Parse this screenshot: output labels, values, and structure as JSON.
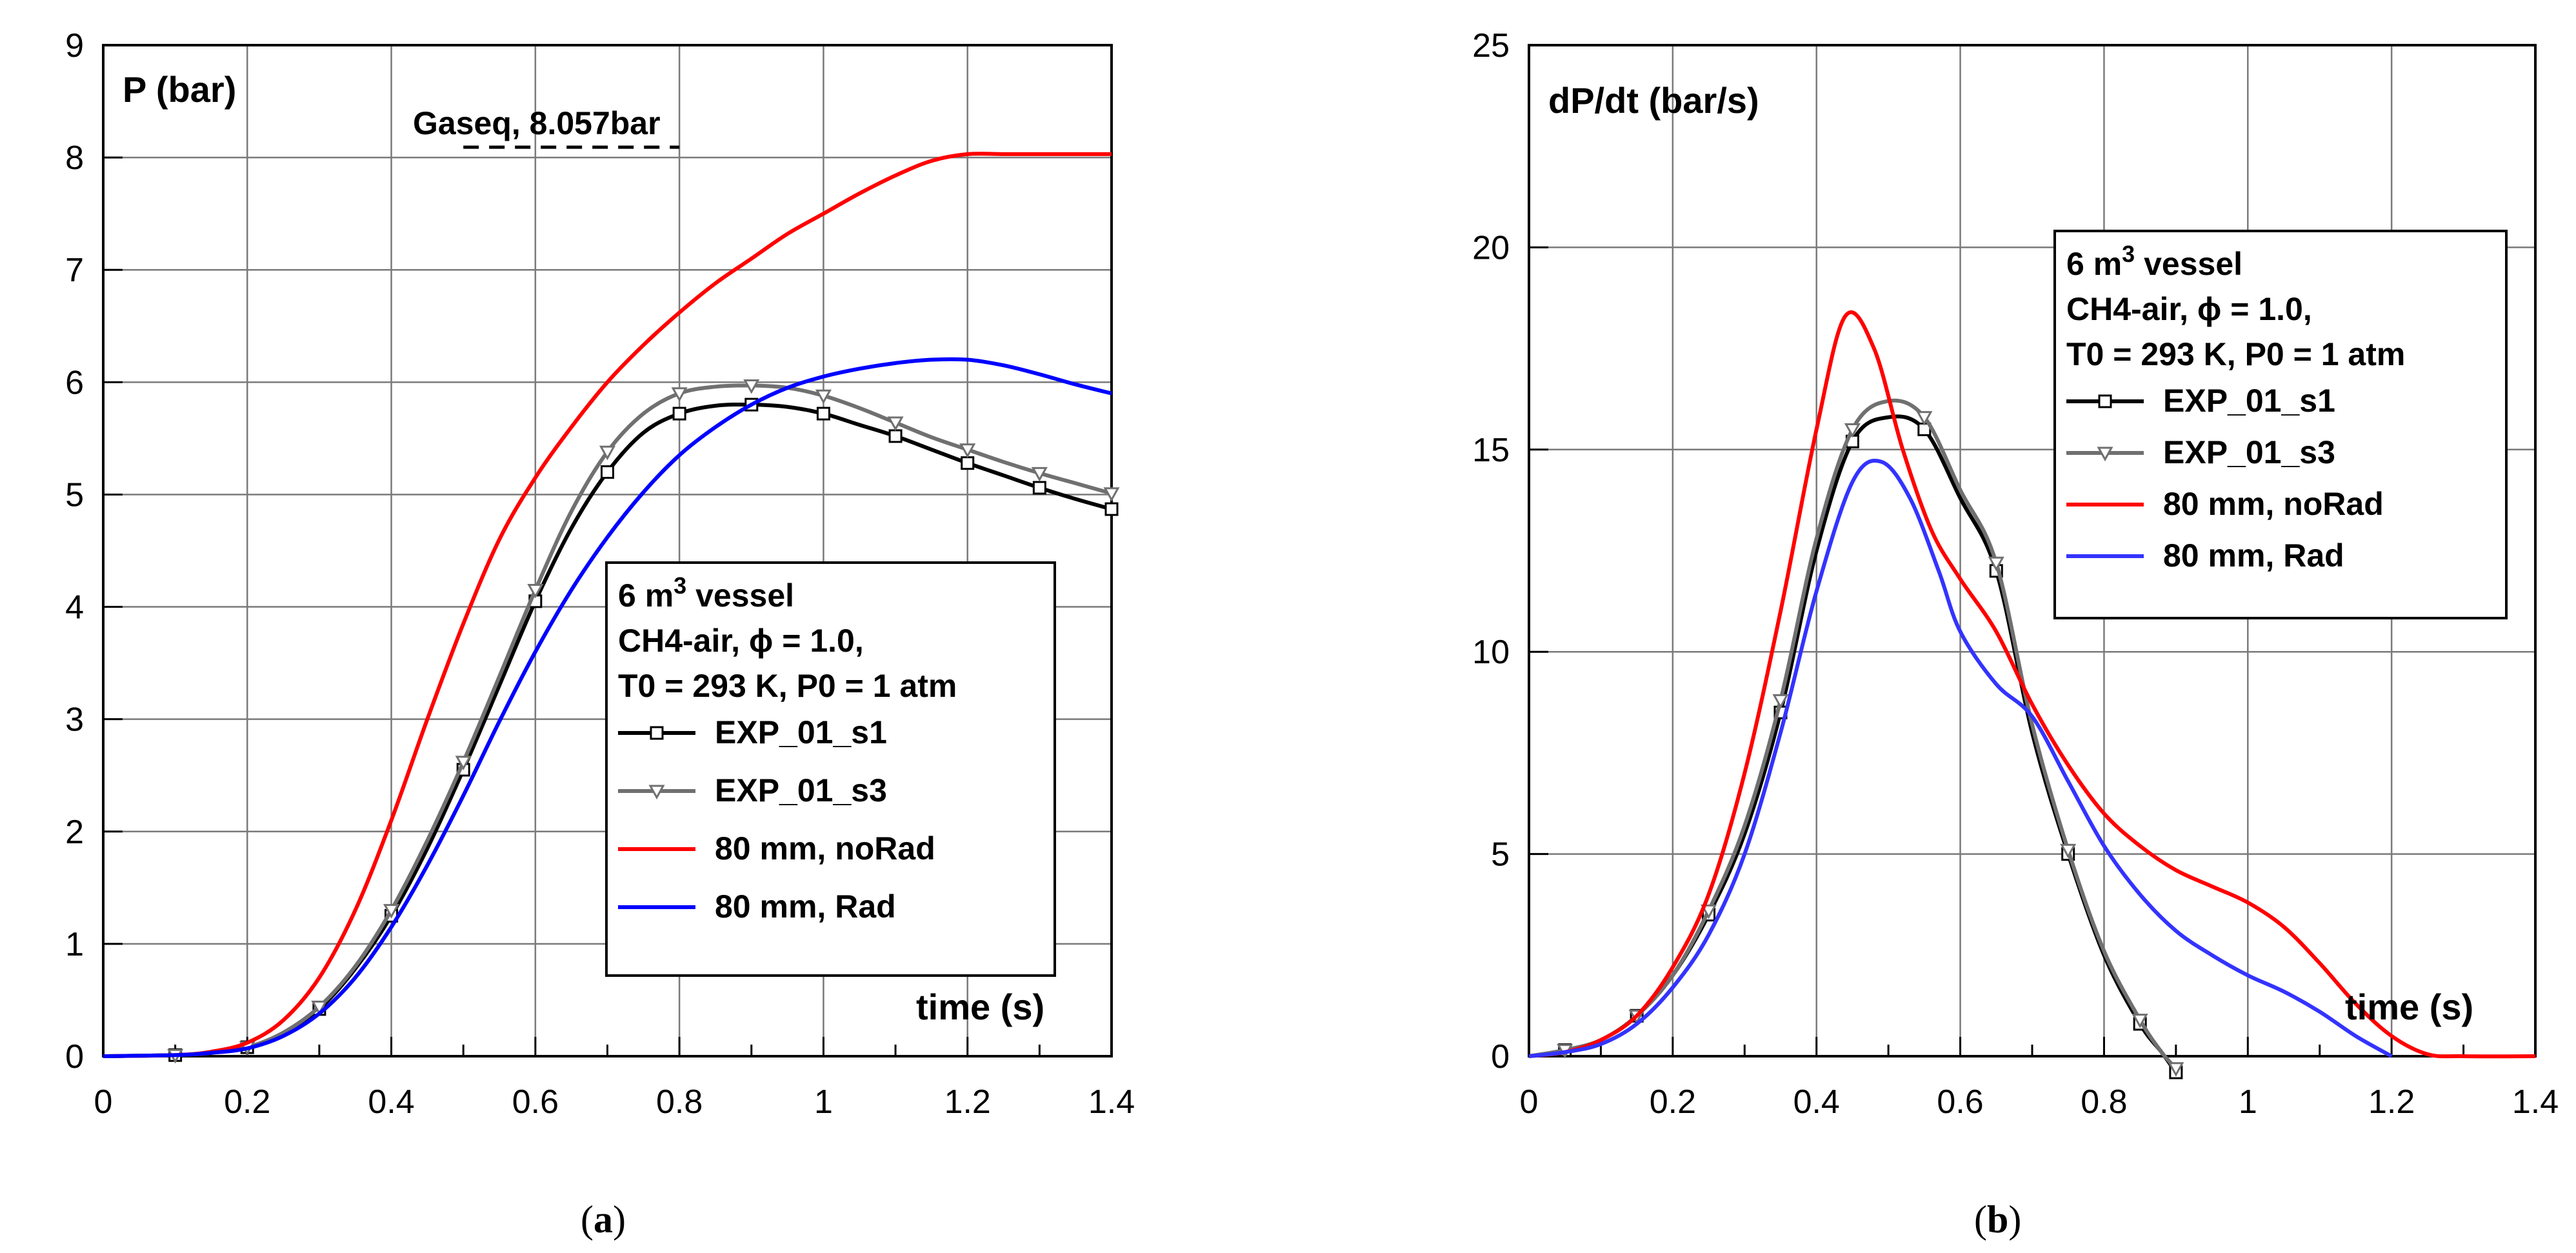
{
  "chart_data": [
    {
      "type": "line",
      "panel": "a",
      "caption_letter": "a",
      "ylabel": "P (bar)",
      "xlabel": "time (s)",
      "xlim": [
        0,
        1.4
      ],
      "ylim": [
        0,
        9
      ],
      "x_ticks": [
        "0",
        "0.2",
        "0.4",
        "0.6",
        "0.8",
        "1",
        "1.2",
        "1.4"
      ],
      "y_ticks": [
        "0",
        "1",
        "2",
        "3",
        "4",
        "5",
        "6",
        "7",
        "8",
        "9"
      ],
      "annotation": {
        "text": "Gaseq, 8.057bar",
        "value": 8.057,
        "x_range": [
          0.5,
          0.8
        ]
      },
      "legend": {
        "placement": "center-right",
        "title_prefix": "6 m",
        "title_sup": "3",
        "title_suffix": " vessel",
        "fuel_text": "CH4-air, ϕ = 1.0,",
        "cond_t": "T0 = 293 K,",
        "cond_p": "P0 = 1 atm"
      },
      "series": [
        {
          "name": "EXP_01_s1",
          "color": "#000000",
          "marker": "square",
          "x": [
            0,
            0.1,
            0.15,
            0.2,
            0.25,
            0.3,
            0.35,
            0.4,
            0.45,
            0.5,
            0.55,
            0.6,
            0.65,
            0.7,
            0.75,
            0.8,
            0.85,
            0.9,
            0.95,
            1.0,
            1.05,
            1.1,
            1.15,
            1.2,
            1.25,
            1.3,
            1.35,
            1.4
          ],
          "y": [
            0,
            0.01,
            0.03,
            0.08,
            0.2,
            0.42,
            0.78,
            1.25,
            1.85,
            2.55,
            3.3,
            4.05,
            4.7,
            5.2,
            5.55,
            5.72,
            5.79,
            5.8,
            5.78,
            5.72,
            5.62,
            5.52,
            5.4,
            5.28,
            5.17,
            5.06,
            4.96,
            4.87
          ]
        },
        {
          "name": "EXP_01_s3",
          "color": "#707070",
          "marker": "triangle",
          "x": [
            0,
            0.1,
            0.15,
            0.2,
            0.25,
            0.3,
            0.35,
            0.4,
            0.45,
            0.5,
            0.55,
            0.6,
            0.65,
            0.7,
            0.75,
            0.8,
            0.85,
            0.9,
            0.95,
            1.0,
            1.05,
            1.1,
            1.15,
            1.2,
            1.25,
            1.3,
            1.35,
            1.4
          ],
          "y": [
            0,
            0.01,
            0.03,
            0.08,
            0.21,
            0.44,
            0.8,
            1.3,
            1.92,
            2.62,
            3.38,
            4.15,
            4.85,
            5.38,
            5.72,
            5.9,
            5.96,
            5.97,
            5.95,
            5.88,
            5.77,
            5.64,
            5.51,
            5.4,
            5.29,
            5.19,
            5.1,
            5.01
          ]
        },
        {
          "name": "80 mm, noRad",
          "color": "#ff0000",
          "marker": "none",
          "x": [
            0,
            0.1,
            0.15,
            0.2,
            0.25,
            0.3,
            0.35,
            0.4,
            0.45,
            0.5,
            0.55,
            0.6,
            0.65,
            0.7,
            0.75,
            0.8,
            0.85,
            0.9,
            0.95,
            1.0,
            1.05,
            1.1,
            1.15,
            1.2,
            1.25,
            1.3,
            1.35,
            1.4
          ],
          "y": [
            0,
            0.01,
            0.04,
            0.12,
            0.32,
            0.7,
            1.3,
            2.1,
            3.0,
            3.85,
            4.6,
            5.15,
            5.6,
            6.0,
            6.33,
            6.62,
            6.88,
            7.1,
            7.32,
            7.5,
            7.68,
            7.84,
            7.97,
            8.03,
            8.03,
            8.03,
            8.03,
            8.03
          ]
        },
        {
          "name": "80 mm, Rad",
          "color": "#0000ff",
          "marker": "none",
          "x": [
            0,
            0.1,
            0.15,
            0.2,
            0.25,
            0.3,
            0.35,
            0.4,
            0.45,
            0.5,
            0.55,
            0.6,
            0.65,
            0.7,
            0.75,
            0.8,
            0.85,
            0.9,
            0.95,
            1.0,
            1.05,
            1.1,
            1.15,
            1.2,
            1.25,
            1.3,
            1.35,
            1.4
          ],
          "y": [
            0,
            0.01,
            0.03,
            0.07,
            0.18,
            0.38,
            0.7,
            1.15,
            1.7,
            2.32,
            2.98,
            3.6,
            4.15,
            4.62,
            5.02,
            5.35,
            5.6,
            5.8,
            5.95,
            6.05,
            6.12,
            6.17,
            6.2,
            6.2,
            6.15,
            6.07,
            5.98,
            5.9
          ]
        }
      ]
    },
    {
      "type": "line",
      "panel": "b",
      "caption_letter": "b",
      "ylabel": "dP/dt (bar/s)",
      "xlabel": "time (s)",
      "xlim": [
        0,
        1.4
      ],
      "ylim": [
        0,
        25
      ],
      "x_ticks": [
        "0",
        "0.2",
        "0.4",
        "0.6",
        "0.8",
        "1",
        "1.2",
        "1.4"
      ],
      "y_ticks": [
        "0",
        "5",
        "10",
        "15",
        "20",
        "25"
      ],
      "legend": {
        "placement": "top-right",
        "title_prefix": "6 m",
        "title_sup": "3",
        "title_suffix": " vessel",
        "fuel_text": "CH4-air, ϕ = 1.0,",
        "cond_t": "T0 = 293 K,",
        "cond_p": "P0 = 1 atm"
      },
      "series": [
        {
          "name": "EXP_01_s1",
          "color": "#000000",
          "marker": "square",
          "x": [
            0,
            0.05,
            0.1,
            0.15,
            0.2,
            0.25,
            0.3,
            0.35,
            0.4,
            0.45,
            0.5,
            0.55,
            0.6,
            0.65,
            0.7,
            0.75,
            0.8,
            0.85,
            0.88,
            0.9
          ],
          "y": [
            0,
            0.15,
            0.4,
            1.0,
            2.0,
            3.5,
            5.5,
            8.5,
            12.5,
            15.2,
            15.8,
            15.5,
            13.8,
            12.0,
            8.0,
            5.0,
            2.5,
            0.8,
            0.1,
            -0.4
          ]
        },
        {
          "name": "EXP_01_s3",
          "color": "#707070",
          "marker": "triangle",
          "x": [
            0,
            0.05,
            0.1,
            0.15,
            0.2,
            0.25,
            0.3,
            0.35,
            0.4,
            0.45,
            0.5,
            0.55,
            0.6,
            0.65,
            0.7,
            0.75,
            0.8,
            0.85,
            0.88,
            0.9
          ],
          "y": [
            0,
            0.15,
            0.4,
            1.0,
            2.0,
            3.6,
            5.7,
            8.8,
            12.8,
            15.5,
            16.2,
            15.8,
            14.0,
            12.2,
            8.2,
            5.1,
            2.6,
            0.9,
            0.1,
            -0.3
          ]
        },
        {
          "name": "80 mm, noRad",
          "color": "#ff0000",
          "marker": "none",
          "x": [
            0,
            0.05,
            0.1,
            0.15,
            0.2,
            0.25,
            0.3,
            0.35,
            0.4,
            0.44,
            0.48,
            0.52,
            0.56,
            0.6,
            0.65,
            0.7,
            0.75,
            0.8,
            0.85,
            0.9,
            0.95,
            1.0,
            1.05,
            1.1,
            1.15,
            1.2,
            1.25,
            1.3,
            1.4
          ],
          "y": [
            0,
            0.1,
            0.4,
            1.0,
            2.2,
            4.0,
            7.0,
            11.0,
            15.5,
            18.3,
            17.5,
            15.0,
            13.0,
            11.8,
            10.5,
            8.7,
            7.2,
            6.0,
            5.2,
            4.6,
            4.2,
            3.8,
            3.2,
            2.3,
            1.3,
            0.5,
            0.05,
            0,
            0
          ]
        },
        {
          "name": "80 mm, Rad",
          "color": "#3333ff",
          "marker": "none",
          "x": [
            0,
            0.05,
            0.1,
            0.15,
            0.2,
            0.25,
            0.3,
            0.35,
            0.4,
            0.45,
            0.49,
            0.53,
            0.57,
            0.6,
            0.65,
            0.7,
            0.75,
            0.8,
            0.85,
            0.9,
            0.95,
            1.0,
            1.05,
            1.1,
            1.15,
            1.2
          ],
          "y": [
            0,
            0.1,
            0.3,
            0.8,
            1.7,
            3.0,
            5.0,
            8.0,
            11.5,
            14.2,
            14.7,
            13.8,
            12.0,
            10.5,
            9.2,
            8.4,
            6.8,
            5.2,
            4.0,
            3.1,
            2.5,
            2.0,
            1.6,
            1.1,
            0.5,
            0
          ]
        }
      ]
    }
  ]
}
